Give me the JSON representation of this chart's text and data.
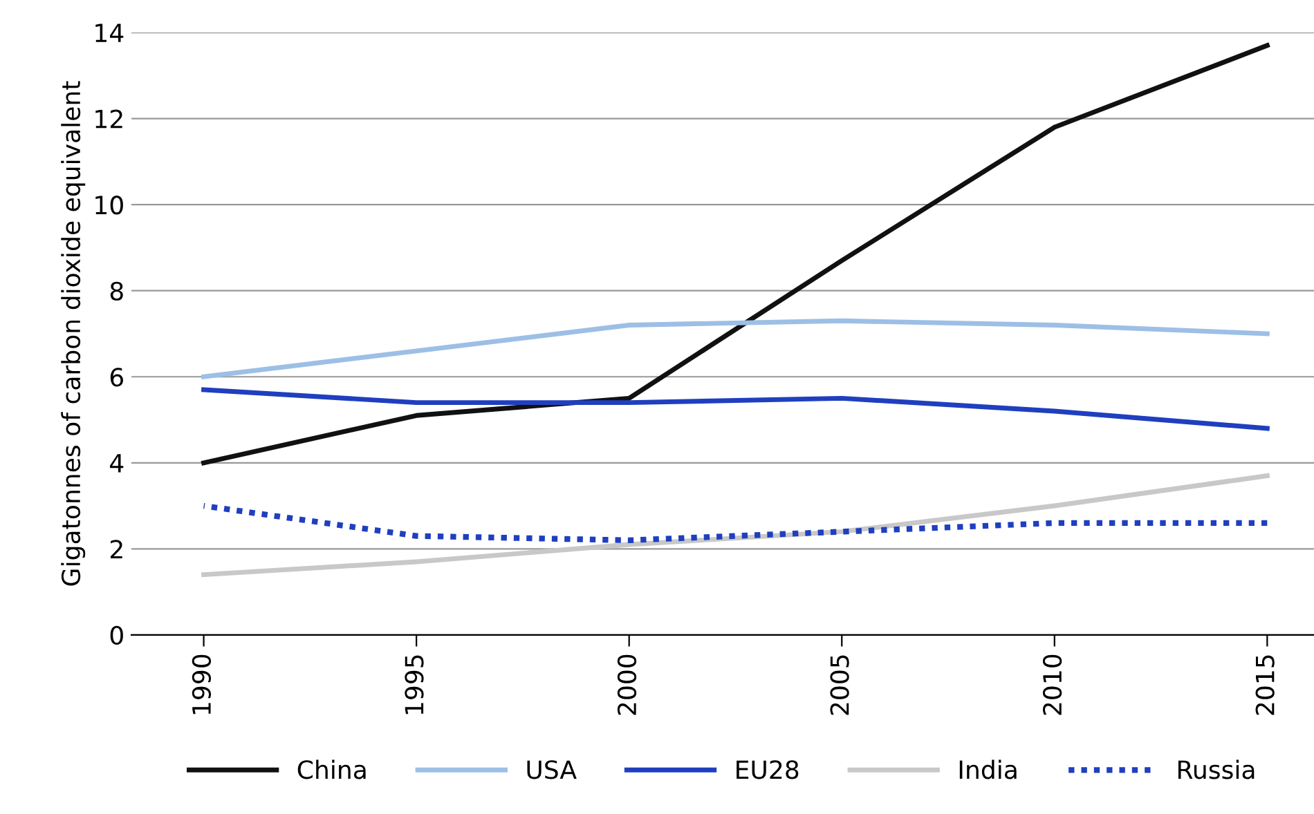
{
  "chart_data": {
    "type": "line",
    "ylabel": "Gigatonnes of carbon dioxide equivalent",
    "x": [
      1990,
      1995,
      2000,
      2005,
      2010,
      2015
    ],
    "xlim": [
      1988.3,
      2016.1
    ],
    "xticks": [
      1990,
      1995,
      2000,
      2005,
      2010,
      2015
    ],
    "ylim": [
      0,
      14
    ],
    "yticks": [
      0,
      2,
      4,
      6,
      8,
      10,
      12,
      14
    ],
    "grid": "y",
    "legend": "bottom",
    "marker": "none",
    "series": [
      {
        "name": "China",
        "color": "#111111",
        "line_style": "solid",
        "values": [
          4.0,
          5.1,
          5.5,
          8.7,
          11.8,
          13.7
        ]
      },
      {
        "name": "USA",
        "color": "#9dbfe6",
        "line_style": "solid",
        "values": [
          6.0,
          6.6,
          7.2,
          7.3,
          7.2,
          7.0
        ]
      },
      {
        "name": "EU28",
        "color": "#1f3fbf",
        "line_style": "solid",
        "values": [
          5.7,
          5.4,
          5.4,
          5.5,
          5.2,
          4.8
        ]
      },
      {
        "name": "India",
        "color": "#c8c8c8",
        "line_style": "solid",
        "values": [
          1.4,
          1.7,
          2.1,
          2.4,
          3.0,
          3.7
        ]
      },
      {
        "name": "Russia",
        "color": "#1f3fbf",
        "line_style": "dotted",
        "values": [
          3.0,
          2.3,
          2.2,
          2.4,
          2.6,
          2.6
        ]
      }
    ]
  }
}
